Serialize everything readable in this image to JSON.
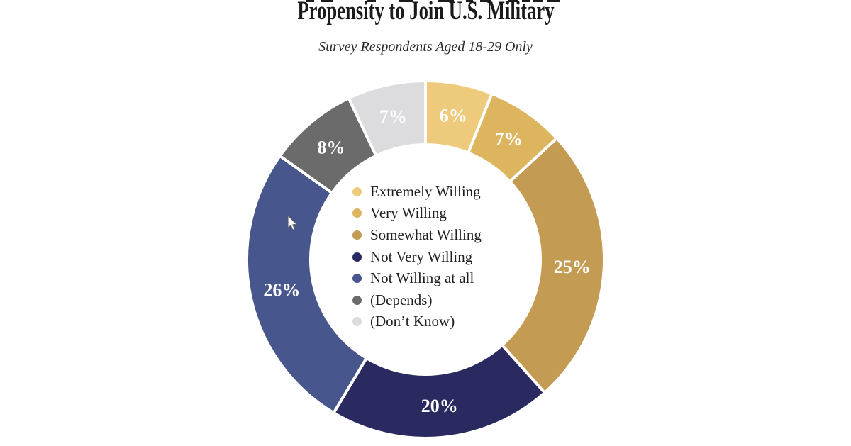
{
  "chart_data": {
    "type": "pie",
    "donut": true,
    "title": "Propensity to Join U.S. Military",
    "subtitle": "Survey Respondents Aged 18-29 Only",
    "unit": "%",
    "start_angle_deg": 0,
    "direction": "clockwise",
    "legend_position": "center",
    "gap_color": "#ffffff",
    "segments": [
      {
        "label": "Extremely Willing",
        "value": 6,
        "display": "6%",
        "color": "#EECB7C"
      },
      {
        "label": "Very Willing",
        "value": 7,
        "display": "7%",
        "color": "#DDB55F"
      },
      {
        "label": "Somewhat Willing",
        "value": 25,
        "display": "25%",
        "color": "#C49B52"
      },
      {
        "label": "Not Very Willing",
        "value": 20,
        "display": "20%",
        "color": "#2A2A60"
      },
      {
        "label": "Not Willing at all",
        "value": 26,
        "display": "26%",
        "color": "#47568C"
      },
      {
        "label": "(Depends)",
        "value": 8,
        "display": "8%",
        "color": "#6B6B6B"
      },
      {
        "label": "(Don’t Know)",
        "value": 7,
        "display": "7%",
        "color": "#DCDCDF"
      }
    ]
  }
}
